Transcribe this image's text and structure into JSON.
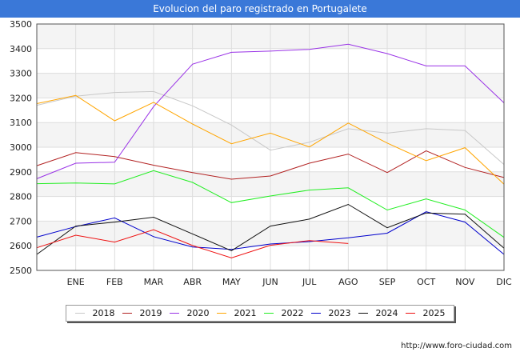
{
  "header": {
    "title": "Evolucion del paro registrado en Portugalete"
  },
  "footer": {
    "url": "http://www.foro-ciudad.com"
  },
  "chart_data": {
    "type": "line",
    "title": "Evolucion del paro registrado en Portugalete",
    "xlabel": "",
    "ylabel": "",
    "x": [
      "",
      "ENE",
      "FEB",
      "MAR",
      "ABR",
      "MAY",
      "JUN",
      "JUL",
      "AGO",
      "SEP",
      "OCT",
      "NOV",
      "DIC"
    ],
    "ylim": [
      2500,
      3500
    ],
    "yticks": [
      2500,
      2600,
      2700,
      2800,
      2900,
      3000,
      3100,
      3200,
      3300,
      3400,
      3500
    ],
    "grid": true,
    "legend_position": "bottom",
    "series": [
      {
        "name": "2018",
        "color": "#c8c8c8",
        "values": [
          3170,
          3207,
          3222,
          3226,
          3168,
          3090,
          2988,
          3020,
          3075,
          3057,
          3075,
          3068,
          2930
        ]
      },
      {
        "name": "2019",
        "color": "#b22222",
        "values": [
          2925,
          2978,
          2962,
          2927,
          2897,
          2870,
          2883,
          2935,
          2972,
          2897,
          2985,
          2918,
          2877
        ]
      },
      {
        "name": "2020",
        "color": "#9932e6",
        "values": [
          2872,
          2935,
          2939,
          3165,
          3337,
          3385,
          3390,
          3397,
          3418,
          3380,
          3330,
          3330,
          3180
        ]
      },
      {
        "name": "2021",
        "color": "#ffa500",
        "values": [
          3177,
          3210,
          3107,
          3182,
          3094,
          3014,
          3057,
          3001,
          3098,
          3017,
          2945,
          2998,
          2850
        ]
      },
      {
        "name": "2022",
        "color": "#22ee22",
        "values": [
          2852,
          2855,
          2851,
          2905,
          2857,
          2775,
          2802,
          2826,
          2835,
          2745,
          2790,
          2745,
          2634
        ]
      },
      {
        "name": "2023",
        "color": "#0000cc",
        "values": [
          2635,
          2678,
          2713,
          2637,
          2595,
          2585,
          2607,
          2617,
          2632,
          2651,
          2738,
          2696,
          2565
        ]
      },
      {
        "name": "2024",
        "color": "#111111",
        "values": [
          2565,
          2680,
          2696,
          2716,
          2648,
          2580,
          2680,
          2708,
          2768,
          2673,
          2733,
          2728,
          2590
        ]
      },
      {
        "name": "2025",
        "color": "#ee1111",
        "values": [
          2592,
          2643,
          2615,
          2665,
          2601,
          2551,
          2602,
          2621,
          2609,
          null,
          null,
          null,
          null
        ]
      }
    ]
  }
}
